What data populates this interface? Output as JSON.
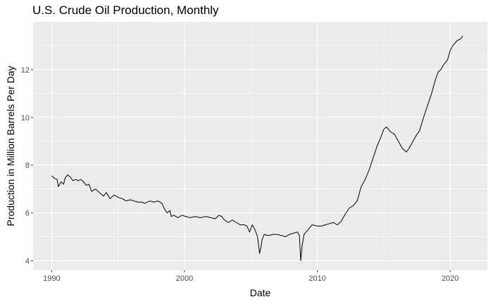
{
  "chart_data": {
    "type": "line",
    "title": "U.S. Crude Oil Production, Monthly",
    "xlabel": "Date",
    "ylabel": "Production in Million Barrels Per Day",
    "xlim": [
      1988.6,
      2022.8
    ],
    "ylim": [
      3.6,
      14.0
    ],
    "x_ticks": [
      1990,
      2000,
      2010,
      2020
    ],
    "x_tick_labels": [
      "1990",
      "2000",
      "2010",
      "2020"
    ],
    "y_ticks": [
      4,
      6,
      8,
      10,
      12
    ],
    "y_tick_labels": [
      "4",
      "6",
      "8",
      "10",
      "12"
    ],
    "grid": true,
    "legend": "none",
    "colors": {
      "panel": "#ebebeb",
      "grid": "#ffffff",
      "line": "#000000",
      "tick": "#4d4d4d"
    },
    "series": [
      {
        "x": [
          1990.0,
          1990.2,
          1990.4,
          1990.5,
          1990.7,
          1990.9,
          1991.0,
          1991.2,
          1991.4,
          1991.6,
          1991.8,
          1992.0,
          1992.2,
          1992.4,
          1992.6,
          1992.8,
          1993.0,
          1993.3,
          1993.6,
          1993.9,
          1994.1,
          1994.4,
          1994.7,
          1995.0,
          1995.3,
          1995.6,
          1995.9,
          1996.2,
          1996.5,
          1996.8,
          1997.0,
          1997.4,
          1997.7,
          1998.0,
          1998.3,
          1998.5,
          1998.7,
          1998.9,
          1999.0,
          1999.2,
          1999.5,
          1999.8,
          2000.1,
          2000.4,
          2000.8,
          2001.2,
          2001.6,
          2002.0,
          2002.3,
          2002.6,
          2002.8,
          2003.0,
          2003.3,
          2003.6,
          2003.9,
          2004.2,
          2004.5,
          2004.7,
          2004.9,
          2005.1,
          2005.3,
          2005.5,
          2005.65,
          2005.75,
          2005.85,
          2006.0,
          2006.3,
          2006.7,
          2007.0,
          2007.3,
          2007.6,
          2007.9,
          2008.2,
          2008.5,
          2008.65,
          2008.75,
          2008.85,
          2009.0,
          2009.3,
          2009.6,
          2010.0,
          2010.3,
          2010.6,
          2010.9,
          2011.2,
          2011.5,
          2011.8,
          2012.1,
          2012.4,
          2012.7,
          2013.0,
          2013.3,
          2013.6,
          2013.9,
          2014.2,
          2014.5,
          2014.8,
          2015.0,
          2015.2,
          2015.5,
          2015.8,
          2016.1,
          2016.4,
          2016.7,
          2016.9,
          2017.1,
          2017.4,
          2017.7,
          2018.0,
          2018.3,
          2018.6,
          2018.9,
          2019.1,
          2019.3,
          2019.5,
          2019.8,
          2020.0,
          2020.2,
          2020.5,
          2020.8,
          2020.95
        ],
        "y": [
          7.55,
          7.45,
          7.4,
          7.1,
          7.3,
          7.2,
          7.45,
          7.6,
          7.5,
          7.35,
          7.4,
          7.35,
          7.4,
          7.3,
          7.15,
          7.2,
          6.9,
          7.0,
          6.85,
          6.7,
          6.85,
          6.6,
          6.75,
          6.65,
          6.6,
          6.5,
          6.55,
          6.5,
          6.45,
          6.45,
          6.4,
          6.5,
          6.45,
          6.5,
          6.4,
          6.15,
          6.0,
          6.1,
          5.85,
          5.9,
          5.8,
          5.9,
          5.85,
          5.8,
          5.85,
          5.8,
          5.85,
          5.8,
          5.75,
          5.9,
          5.85,
          5.7,
          5.6,
          5.7,
          5.6,
          5.5,
          5.5,
          5.45,
          5.2,
          5.5,
          5.3,
          5.0,
          4.3,
          4.55,
          4.9,
          5.1,
          5.05,
          5.1,
          5.1,
          5.05,
          5.0,
          5.1,
          5.15,
          5.2,
          5.05,
          4.0,
          4.6,
          5.1,
          5.3,
          5.5,
          5.45,
          5.45,
          5.5,
          5.55,
          5.6,
          5.5,
          5.65,
          5.95,
          6.2,
          6.3,
          6.5,
          7.1,
          7.4,
          7.8,
          8.3,
          8.8,
          9.2,
          9.5,
          9.6,
          9.4,
          9.3,
          9.0,
          8.7,
          8.55,
          8.7,
          8.9,
          9.2,
          9.45,
          10.0,
          10.5,
          11.0,
          11.6,
          11.9,
          12.0,
          12.2,
          12.4,
          12.8,
          13.0,
          13.2,
          13.3,
          13.4
        ]
      }
    ]
  }
}
